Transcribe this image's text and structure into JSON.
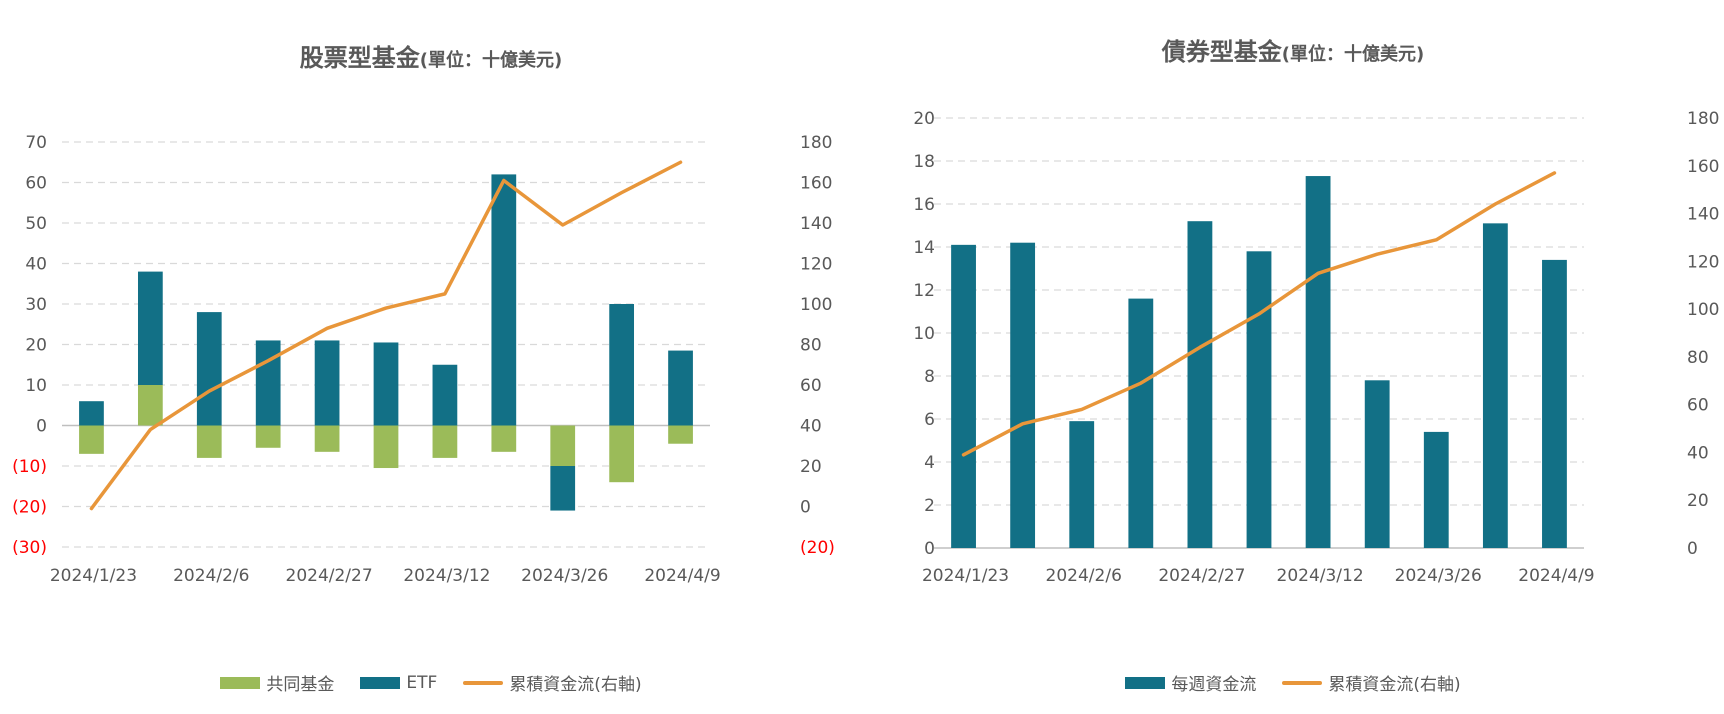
{
  "colors": {
    "mutual_fund": "#9BBB59",
    "etf": "#127086",
    "weekly_flow": "#127086",
    "cumulative": "#E8963A",
    "negative_label": "#FF0000",
    "axis_text": "#595959",
    "grid": "#D9D9D9"
  },
  "left_chart": {
    "title": "股票型基金",
    "unit": "(單位：十億美元)",
    "legend": [
      "共同基金",
      "ETF",
      "累積資金流(右軸)"
    ]
  },
  "right_chart": {
    "title": "債券型基金",
    "unit": "(單位：十億美元)",
    "legend": [
      "每週資金流",
      "累積資金流(右軸)"
    ]
  },
  "chart_data": [
    {
      "type": "bar",
      "title": "股票型基金(單位：十億美元)",
      "stacked": true,
      "x_tick_labels": [
        "2024/1/23",
        "2024/2/6",
        "2024/2/27",
        "2024/3/12",
        "2024/3/26",
        "2024/4/9"
      ],
      "x_tick_every": 2,
      "ylim": [
        -30,
        70
      ],
      "y_ticks": [
        "70",
        "60",
        "50",
        "40",
        "30",
        "20",
        "10",
        "0",
        "(10)",
        "(20)",
        "(30)"
      ],
      "y2lim": [
        -20,
        180
      ],
      "y2_ticks": [
        "180",
        "160",
        "140",
        "120",
        "100",
        "80",
        "60",
        "40",
        "20",
        "0",
        "(20)"
      ],
      "series": [
        {
          "name": "共同基金",
          "type": "bar",
          "values": [
            -7,
            10,
            -8,
            -5.5,
            -6.5,
            -10.5,
            -8,
            -6.5,
            -10,
            -14,
            -4.5
          ]
        },
        {
          "name": "ETF",
          "type": "bar",
          "values": [
            6,
            28,
            28,
            21,
            21,
            20.5,
            15,
            62,
            -11,
            30,
            18.5
          ]
        },
        {
          "name": "累積資金流(右軸)",
          "type": "line",
          "axis": "right",
          "values": [
            -1,
            38,
            57,
            72,
            88,
            98,
            105,
            161,
            139,
            155,
            170
          ]
        }
      ],
      "grid": true,
      "legend_position": "bottom"
    },
    {
      "type": "bar",
      "title": "債券型基金(單位：十億美元)",
      "x_tick_labels": [
        "2024/1/23",
        "2024/2/6",
        "2024/2/27",
        "2024/3/12",
        "2024/3/26",
        "2024/4/9"
      ],
      "x_tick_every": 2,
      "ylim": [
        0,
        20
      ],
      "y_ticks": [
        "20",
        "18",
        "16",
        "14",
        "12",
        "10",
        "8",
        "6",
        "4",
        "2",
        "0"
      ],
      "y2lim": [
        0,
        180
      ],
      "y2_ticks": [
        "180",
        "160",
        "140",
        "120",
        "100",
        "80",
        "60",
        "40",
        "20",
        "0"
      ],
      "series": [
        {
          "name": "每週資金流",
          "type": "bar",
          "values": [
            14.1,
            14.2,
            5.9,
            11.6,
            15.2,
            13.8,
            17.3,
            7.8,
            5.4,
            15.1,
            13.4
          ]
        },
        {
          "name": "累積資金流(右軸)",
          "type": "line",
          "axis": "right",
          "values": [
            39,
            52,
            58,
            69,
            84,
            98,
            115,
            123,
            129,
            144,
            157
          ]
        }
      ],
      "grid": true,
      "legend_position": "bottom"
    }
  ]
}
